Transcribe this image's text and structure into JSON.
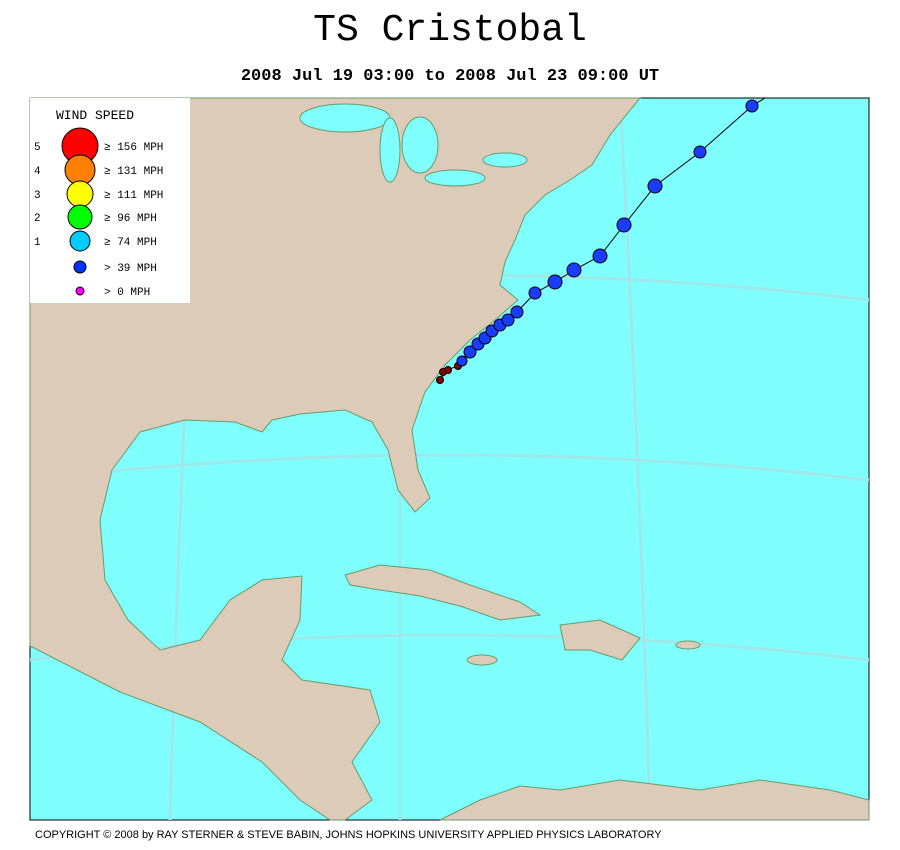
{
  "title": "TS Cristobal",
  "subtitle": "2008 Jul 19 03:00 to 2008 Jul 23 09:00 UT",
  "legend": {
    "title": "WIND SPEED",
    "items": [
      {
        "category": "5",
        "label": "≥ 156 MPH",
        "color": "#ff0000"
      },
      {
        "category": "4",
        "label": "≥ 131 MPH",
        "color": "#ff8000"
      },
      {
        "category": "3",
        "label": "≥ 111 MPH",
        "color": "#ffff00"
      },
      {
        "category": "2",
        "label": "≥ 96 MPH",
        "color": "#00ff00"
      },
      {
        "category": "1",
        "label": "≥ 74 MPH",
        "color": "#00ccff"
      },
      {
        "category": "",
        "label": "> 39 MPH",
        "color": "#0033ff"
      },
      {
        "category": "",
        "label": "> 0 MPH",
        "color": "#ff00ff"
      }
    ]
  },
  "copyright": "COPYRIGHT © 2008 by RAY STERNER & STEVE BABIN, JOHNS HOPKINS UNIVERSITY APPLIED PHYSICS LABORATORY"
}
